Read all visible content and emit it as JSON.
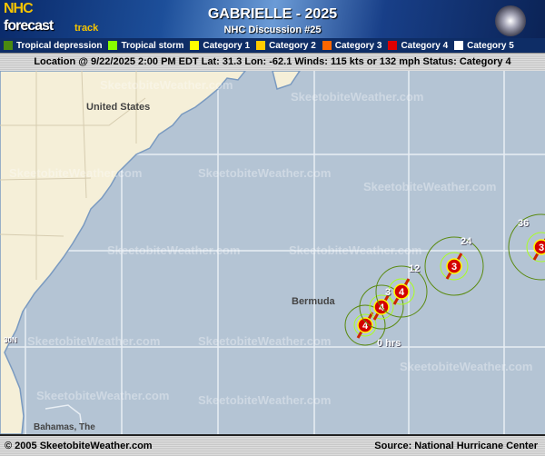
{
  "header": {
    "logo": {
      "line1": "NHC",
      "line2": "forecast",
      "line3": "track"
    },
    "title": "GABRIELLE - 2025",
    "subtitle": "NHC Discussion #25"
  },
  "legend": [
    {
      "label": "Tropical depression",
      "color": "#4a8a10"
    },
    {
      "label": "Tropical storm",
      "color": "#88ff00"
    },
    {
      "label": "Category 1",
      "color": "#ffff00"
    },
    {
      "label": "Category 2",
      "color": "#ffcc00"
    },
    {
      "label": "Category 3",
      "color": "#ff6600"
    },
    {
      "label": "Category 4",
      "color": "#dd0000"
    },
    {
      "label": "Category 5",
      "color": "#ffffff"
    }
  ],
  "status_bar": "Location @ 9/22/2025 2:00 PM EDT  Lat: 31.3 Lon: -62.1   Winds: 115 kts or 132 mph  Status: Category 4",
  "map": {
    "labels": {
      "us": "United States",
      "bermuda": "Bermuda",
      "bahamas": "Bahamas, The",
      "lat30": "30N"
    },
    "watermark": "SkeetobiteWeather.com",
    "track": [
      {
        "hour": "0 hrs",
        "category": "4"
      },
      {
        "hour": "3",
        "category": "4"
      },
      {
        "hour": "12",
        "category": "4"
      },
      {
        "hour": "24",
        "category": "3"
      },
      {
        "hour": "36",
        "category": "3"
      }
    ]
  },
  "footer": {
    "copyright": "© 2005 SkeetobiteWeather.com",
    "source": "Source: National Hurricane Center"
  }
}
